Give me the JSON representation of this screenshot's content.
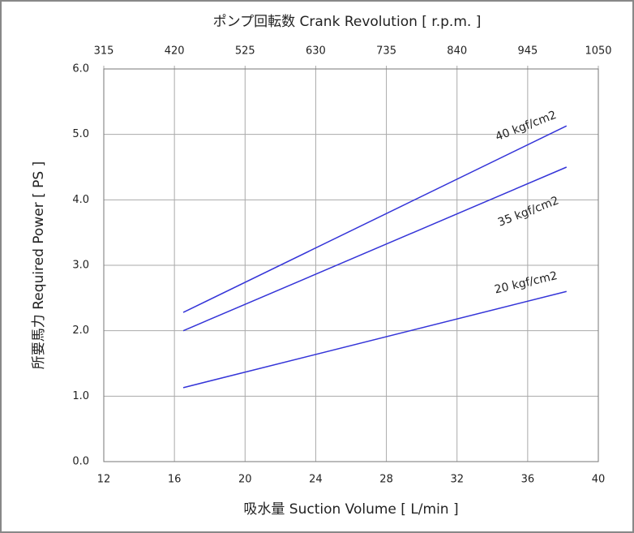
{
  "chart_data": {
    "type": "line",
    "title": "ポンプ回転数 Crank Revolution [ r.p.m. ]",
    "xlabel": "吸水量 Suction Volume [ L/min ]",
    "ylabel": "所要馬力 Required Power [ PS ]",
    "xlim": [
      12,
      40
    ],
    "xticks": [
      12,
      16,
      20,
      24,
      28,
      32,
      36,
      40
    ],
    "x2lim": [
      315,
      1050
    ],
    "x2ticks": [
      315,
      420,
      525,
      630,
      735,
      840,
      945,
      1050
    ],
    "ylim": [
      0,
      6
    ],
    "yticks": [
      {
        "value": 0,
        "label": "0.0"
      },
      {
        "value": 1,
        "label": "1.0"
      },
      {
        "value": 2,
        "label": "2.0"
      },
      {
        "value": 3,
        "label": "3.0"
      },
      {
        "value": 4,
        "label": "4.0"
      },
      {
        "value": 5,
        "label": "5.0"
      },
      {
        "value": 6,
        "label": "6.0"
      }
    ],
    "grid": true,
    "x": [
      16.5,
      38.2
    ],
    "series": [
      {
        "name": "40 kgf/cm2",
        "color": "#3434d8",
        "values": [
          2.28,
          5.13
        ]
      },
      {
        "name": "35 kgf/cm2",
        "color": "#3434d8",
        "values": [
          2.0,
          4.5
        ]
      },
      {
        "name": "20 kgf/cm2",
        "color": "#3434d8",
        "values": [
          1.13,
          2.6
        ]
      }
    ]
  }
}
